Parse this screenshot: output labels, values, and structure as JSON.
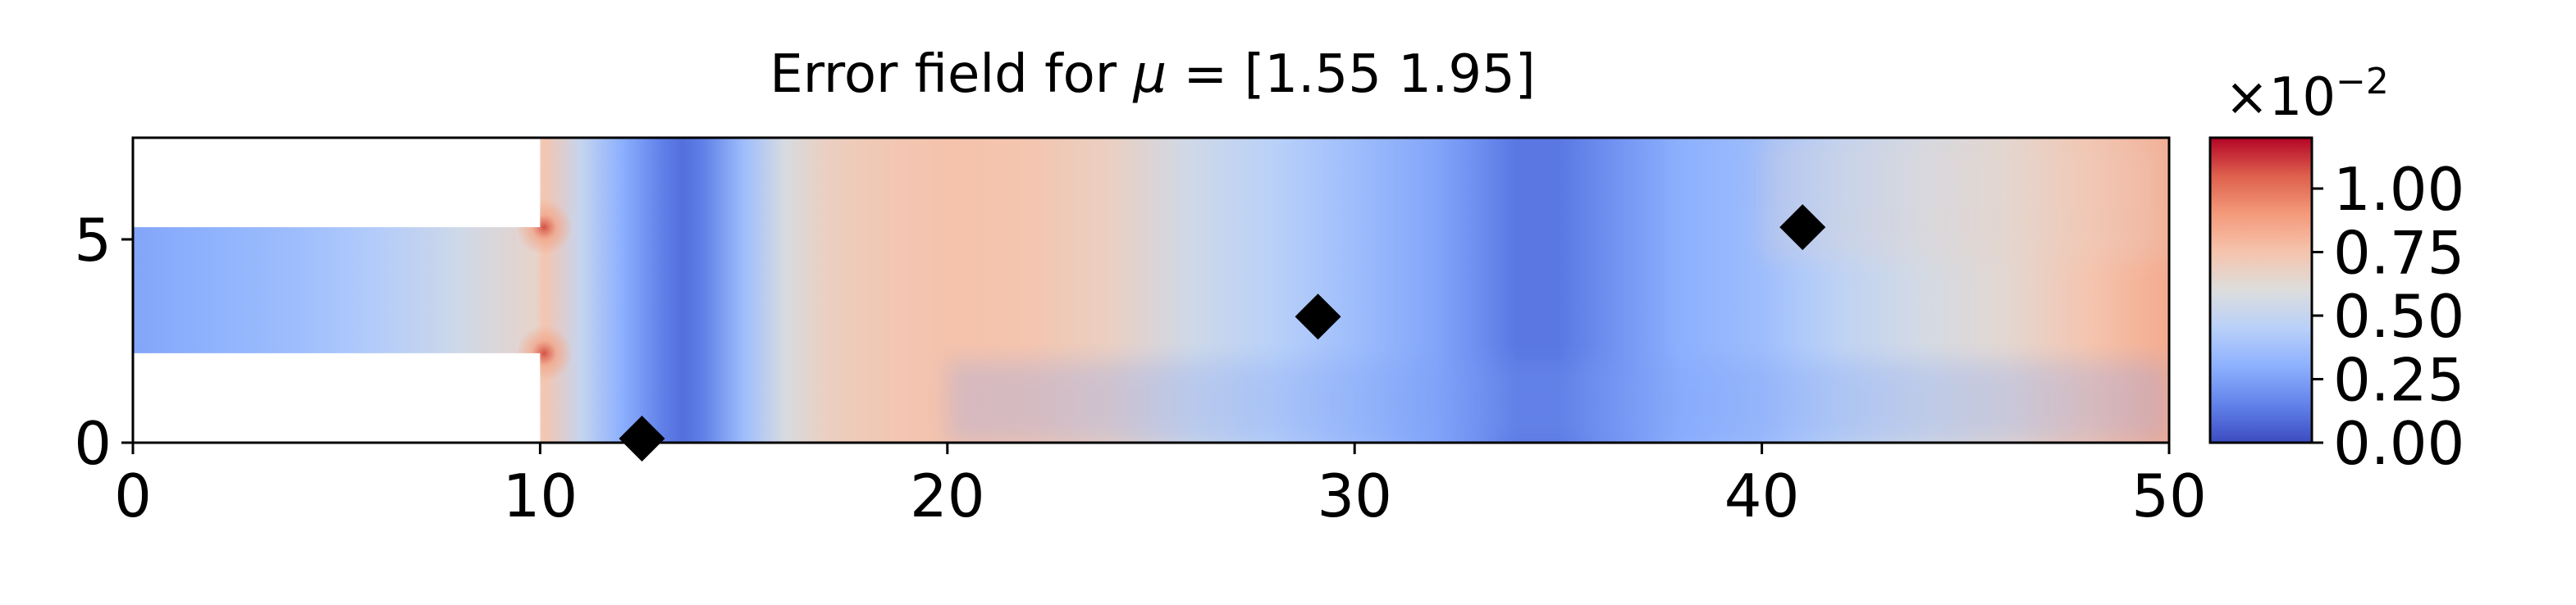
{
  "chart_data": {
    "type": "heatmap",
    "title_prefix": "Error field for ",
    "title_symbol": "μ",
    "title_suffix": " = [1.55 1.95]",
    "xlim": [
      0,
      50
    ],
    "ylim": [
      0,
      7.5
    ],
    "x_ticks": [
      0,
      10,
      20,
      30,
      40,
      50
    ],
    "x_tick_labels": [
      "0",
      "10",
      "20",
      "30",
      "40",
      "50"
    ],
    "y_ticks": [
      0,
      5
    ],
    "y_tick_labels": [
      "0",
      "5"
    ],
    "domain": {
      "inlet": {
        "x": [
          0,
          10
        ],
        "y": [
          2.2,
          5.3
        ]
      },
      "channel": {
        "x": [
          10,
          50
        ],
        "y": [
          0,
          7.5
        ]
      }
    },
    "markers": [
      {
        "x": 12.5,
        "y": 0.1
      },
      {
        "x": 29.1,
        "y": 3.1
      },
      {
        "x": 41.0,
        "y": 5.3
      }
    ],
    "error_field": {
      "x_profile": [
        0,
        2,
        4,
        6,
        8,
        9.9,
        10.1,
        11,
        12,
        13,
        13.5,
        14,
        15,
        16,
        17,
        18,
        20,
        22,
        24,
        26,
        28,
        30,
        32,
        33,
        34,
        35,
        36,
        37,
        38,
        40,
        41,
        42,
        44,
        46,
        48,
        50
      ],
      "level_profile": [
        0.22,
        0.26,
        0.3,
        0.36,
        0.45,
        0.55,
        0.62,
        0.42,
        0.25,
        0.12,
        0.08,
        0.12,
        0.3,
        0.48,
        0.57,
        0.6,
        0.63,
        0.62,
        0.57,
        0.45,
        0.38,
        0.3,
        0.22,
        0.16,
        0.1,
        0.1,
        0.15,
        0.2,
        0.25,
        0.3,
        0.35,
        0.4,
        0.47,
        0.53,
        0.62,
        0.7
      ],
      "hot_spots": [
        {
          "x": 10.1,
          "y": 5.3,
          "level": 0.9
        },
        {
          "x": 10.1,
          "y": 2.2,
          "level": 0.9
        }
      ]
    },
    "colorbar": {
      "colormap": "coolwarm",
      "vmin": 0.0,
      "vmax": 1.2,
      "ticks": [
        0.0,
        0.25,
        0.5,
        0.75,
        1.0
      ],
      "tick_labels": [
        "0.00",
        "0.25",
        "0.50",
        "0.75",
        "1.00"
      ],
      "offset_base": "×10",
      "offset_exponent": "−2"
    },
    "colors": {
      "low": "#3b4cc0",
      "mid": "#dddddd",
      "high": "#b40426",
      "marker": "#000000"
    }
  }
}
